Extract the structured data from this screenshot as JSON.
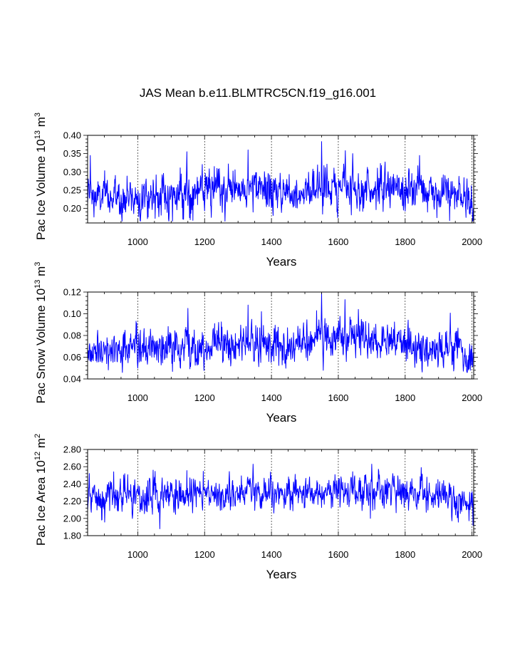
{
  "title": "JAS Mean b.e11.BLMTRC5CN.f19_g16.001",
  "colors": {
    "series": "#0000ff",
    "axis": "#000000",
    "grid": "#000000"
  },
  "chart_data": [
    {
      "type": "line",
      "id": "ice-volume",
      "ylabel_main": "Pac Ice Volume 10",
      "ylabel_exp": "13",
      "ylabel_unit": "m",
      "ylabel_unit_exp": "3",
      "xlabel": "Years",
      "xlim": [
        850,
        2005
      ],
      "ylim": [
        0.16,
        0.4
      ],
      "xticks": [
        1000,
        1200,
        1400,
        1600,
        1800,
        2000
      ],
      "xtick_labels": [
        "1000",
        "1200",
        "1400",
        "1600",
        "1800",
        "2000"
      ],
      "yticks": [
        0.2,
        0.25,
        0.3,
        0.35,
        0.4
      ],
      "ytick_labels": [
        "0.20",
        "0.25",
        "0.30",
        "0.35",
        "0.40"
      ],
      "grid_x": [
        1000,
        1200,
        1400,
        1600,
        1800,
        2000
      ],
      "series": [
        {
          "name": "Pac Ice Volume",
          "x_start": 850,
          "x_step": 1,
          "baseline": [
            [
              850,
              0.23
            ],
            [
              1000,
              0.232
            ],
            [
              1150,
              0.242
            ],
            [
              1300,
              0.252
            ],
            [
              1450,
              0.244
            ],
            [
              1550,
              0.258
            ],
            [
              1650,
              0.255
            ],
            [
              1750,
              0.255
            ],
            [
              1850,
              0.248
            ],
            [
              1950,
              0.238
            ],
            [
              2005,
              0.205
            ]
          ],
          "spread": 0.026,
          "min": 0.165,
          "max": 0.385,
          "peaks": [
            [
              858,
              0.345
            ],
            [
              1147,
              0.355
            ],
            [
              1330,
              0.36
            ],
            [
              1550,
              0.383
            ],
            [
              1621,
              0.358
            ],
            [
              1643,
              0.35
            ],
            [
              1843,
              0.345
            ],
            [
              1104,
              0.165
            ],
            [
              2003,
              0.168
            ]
          ]
        }
      ]
    },
    {
      "type": "line",
      "id": "snow-volume",
      "ylabel_main": "Pac Snow Volume 10",
      "ylabel_exp": "13",
      "ylabel_unit": "m",
      "ylabel_unit_exp": "3",
      "xlabel": "Years",
      "xlim": [
        850,
        2005
      ],
      "ylim": [
        0.04,
        0.12
      ],
      "xticks": [
        1000,
        1200,
        1400,
        1600,
        1800,
        2000
      ],
      "xtick_labels": [
        "1000",
        "1200",
        "1400",
        "1600",
        "1800",
        "2000"
      ],
      "yticks": [
        0.04,
        0.06,
        0.08,
        0.1,
        0.12
      ],
      "ytick_labels": [
        "0.04",
        "0.06",
        "0.08",
        "0.10",
        "0.12"
      ],
      "grid_x": [
        1000,
        1200,
        1400,
        1600,
        1800,
        2000
      ],
      "series": [
        {
          "name": "Pac Snow Volume",
          "x_start": 850,
          "x_step": 1,
          "baseline": [
            [
              850,
              0.066
            ],
            [
              1000,
              0.067
            ],
            [
              1150,
              0.07
            ],
            [
              1300,
              0.073
            ],
            [
              1450,
              0.07
            ],
            [
              1550,
              0.076
            ],
            [
              1650,
              0.076
            ],
            [
              1750,
              0.074
            ],
            [
              1850,
              0.071
            ],
            [
              1950,
              0.067
            ],
            [
              2005,
              0.058
            ]
          ],
          "spread": 0.0085,
          "min": 0.046,
          "max": 0.119,
          "peaks": [
            [
              1150,
              0.105
            ],
            [
              1330,
              0.108
            ],
            [
              1550,
              0.119
            ],
            [
              1620,
              0.113
            ],
            [
              1660,
              0.104
            ],
            [
              1370,
              0.102
            ],
            [
              1995,
              0.048
            ]
          ]
        }
      ]
    },
    {
      "type": "line",
      "id": "ice-area",
      "ylabel_main": "Pac Ice Area 10",
      "ylabel_exp": "12",
      "ylabel_unit": "m",
      "ylabel_unit_exp": "2",
      "xlabel": "Years",
      "xlim": [
        850,
        2005
      ],
      "ylim": [
        1.8,
        2.8
      ],
      "xticks": [
        1000,
        1200,
        1400,
        1600,
        1800,
        2000
      ],
      "xtick_labels": [
        "1000",
        "1200",
        "1400",
        "1600",
        "1800",
        "2000"
      ],
      "yticks": [
        1.8,
        2.0,
        2.2,
        2.4,
        2.6,
        2.8
      ],
      "ytick_labels": [
        "1.80",
        "2.00",
        "2.20",
        "2.40",
        "2.60",
        "2.80"
      ],
      "grid_x": [
        1000,
        1200,
        1400,
        1600,
        1800,
        2000
      ],
      "series": [
        {
          "name": "Pac Ice Area",
          "x_start": 850,
          "x_step": 1,
          "baseline": [
            [
              850,
              2.22
            ],
            [
              1000,
              2.24
            ],
            [
              1150,
              2.26
            ],
            [
              1300,
              2.3
            ],
            [
              1450,
              2.27
            ],
            [
              1550,
              2.31
            ],
            [
              1650,
              2.32
            ],
            [
              1750,
              2.32
            ],
            [
              1850,
              2.3
            ],
            [
              1950,
              2.26
            ],
            [
              2005,
              2.1
            ]
          ],
          "spread": 0.095,
          "min": 1.88,
          "max": 2.63,
          "peaks": [
            [
              1046,
              2.56
            ],
            [
              1345,
              2.63
            ],
            [
              1700,
              2.63
            ],
            [
              1848,
              2.59
            ],
            [
              1066,
              1.88
            ],
            [
              2003,
              1.92
            ]
          ]
        }
      ]
    }
  ]
}
